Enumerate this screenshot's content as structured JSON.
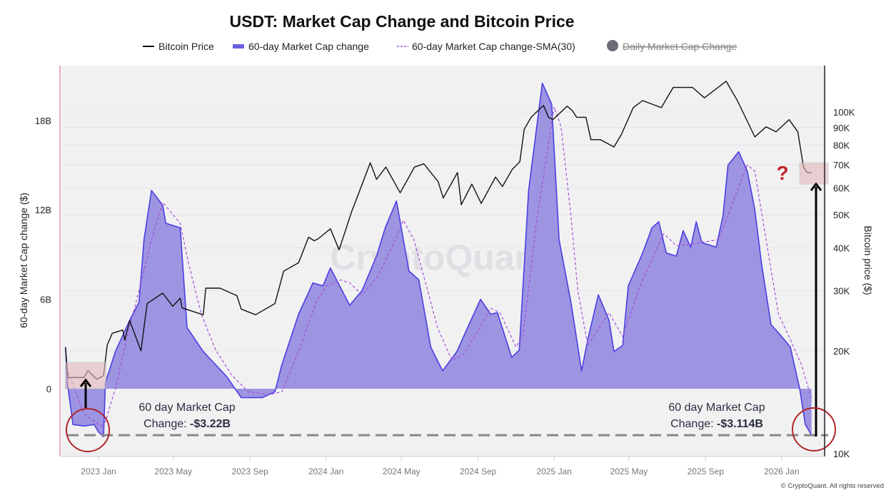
{
  "chart_data": {
    "type": "area",
    "title": "USDT: Market Cap Change and Bitcoin Price",
    "legend": {
      "placement": "top",
      "items": [
        {
          "label": "Bitcoin Price",
          "color": "#111111",
          "style": "line"
        },
        {
          "label": "60-day Market Cap change",
          "color": "#5b4fe0",
          "style": "area"
        },
        {
          "label": "60-day Market Cap change-SMA(30)",
          "color": "#a34fd6",
          "style": "dashed"
        },
        {
          "label": "Daily Market Cap Change",
          "color": "#6b6b78",
          "style": "dot",
          "hidden": true
        }
      ]
    },
    "ylabel_left": "60-day Market Cap change ($)",
    "ylabel_right": "Bitcoin price ($)",
    "y_left": {
      "ticks": [
        "18B",
        "12B",
        "6B",
        "0"
      ],
      "tick_values": [
        18,
        12,
        6,
        0
      ],
      "range": [
        -4.45,
        21.6
      ],
      "unit": "B"
    },
    "y_right": {
      "scale": "log",
      "ticks": [
        "100K",
        "90K",
        "80K",
        "70K",
        "60K",
        "50K",
        "40K",
        "30K",
        "20K",
        "10K"
      ],
      "tick_values": [
        100,
        90,
        80,
        70,
        60,
        50,
        40,
        30,
        20,
        10
      ],
      "unit": "K"
    },
    "x_axis": {
      "ticks": [
        "2023 Jan",
        "2023 May",
        "2023 Sep",
        "2024 Jan",
        "2024 May",
        "2024 Sep",
        "2025 Jan",
        "2025 May",
        "2025 Sep",
        "2026 Jan"
      ],
      "tick_dates": [
        "2023-01-01",
        "2023-05-01",
        "2023-09-01",
        "2024-01-01",
        "2024-05-01",
        "2024-09-01",
        "2025-01-01",
        "2025-05-01",
        "2025-09-01",
        "2026-01-01"
      ],
      "range": [
        "2022-11-07",
        "2026-03-10"
      ]
    },
    "grid": true,
    "series": [
      {
        "name": "60-day Market Cap change",
        "unit": "B",
        "points": [
          [
            "2022-11-09",
            2.8
          ],
          [
            "2022-11-13",
            0.1
          ],
          [
            "2022-11-21",
            -2.4
          ],
          [
            "2022-12-09",
            -2.5
          ],
          [
            "2022-12-25",
            -2.4
          ],
          [
            "2023-01-01",
            -2.9
          ],
          [
            "2023-01-09",
            -3.22
          ],
          [
            "2023-01-12",
            0.4
          ],
          [
            "2023-01-28",
            2.5
          ],
          [
            "2023-02-20",
            4.6
          ],
          [
            "2023-03-07",
            5.8
          ],
          [
            "2023-03-15",
            10
          ],
          [
            "2023-03-27",
            13.3
          ],
          [
            "2023-04-14",
            12.3
          ],
          [
            "2023-04-19",
            11.1
          ],
          [
            "2023-05-12",
            10.8
          ],
          [
            "2023-05-23",
            4.1
          ],
          [
            "2023-06-18",
            2.5
          ],
          [
            "2023-07-26",
            0.8
          ],
          [
            "2023-08-18",
            -0.6
          ],
          [
            "2023-09-21",
            -0.6
          ],
          [
            "2023-10-11",
            -0.2
          ],
          [
            "2023-10-22",
            1.6
          ],
          [
            "2023-11-18",
            5
          ],
          [
            "2023-12-11",
            7.1
          ],
          [
            "2023-12-27",
            6.9
          ],
          [
            "2024-01-08",
            8.1
          ],
          [
            "2024-02-08",
            5.6
          ],
          [
            "2024-02-28",
            6.6
          ],
          [
            "2024-03-22",
            8.9
          ],
          [
            "2024-04-05",
            10.8
          ],
          [
            "2024-04-23",
            12.6
          ],
          [
            "2024-05-13",
            7.9
          ],
          [
            "2024-05-29",
            7.3
          ],
          [
            "2024-06-17",
            2.8
          ],
          [
            "2024-07-06",
            1.2
          ],
          [
            "2024-07-29",
            2.5
          ],
          [
            "2024-08-13",
            3.9
          ],
          [
            "2024-09-05",
            6.0
          ],
          [
            "2024-09-21",
            5.0
          ],
          [
            "2024-10-02",
            5.1
          ],
          [
            "2024-10-25",
            2.1
          ],
          [
            "2024-11-06",
            2.6
          ],
          [
            "2024-11-21",
            13.3
          ],
          [
            "2024-12-13",
            20.5
          ],
          [
            "2024-12-28",
            19.1
          ],
          [
            "2025-01-09",
            10
          ],
          [
            "2025-01-28",
            5.8
          ],
          [
            "2025-02-14",
            1.2
          ],
          [
            "2025-02-24",
            3.3
          ],
          [
            "2025-03-13",
            6.3
          ],
          [
            "2025-03-30",
            4.6
          ],
          [
            "2025-04-07",
            2.5
          ],
          [
            "2025-04-21",
            2.9
          ],
          [
            "2025-04-30",
            6.9
          ],
          [
            "2025-05-23",
            9.1
          ],
          [
            "2025-06-07",
            10.8
          ],
          [
            "2025-06-18",
            11.2
          ],
          [
            "2025-06-30",
            9.1
          ],
          [
            "2025-07-16",
            8.9
          ],
          [
            "2025-07-27",
            10.6
          ],
          [
            "2025-08-08",
            9.5
          ],
          [
            "2025-08-17",
            11.2
          ],
          [
            "2025-08-26",
            9.8
          ],
          [
            "2025-09-18",
            9.5
          ],
          [
            "2025-09-29",
            11.6
          ],
          [
            "2025-10-07",
            15
          ],
          [
            "2025-10-24",
            15.9
          ],
          [
            "2025-11-07",
            14.6
          ],
          [
            "2025-11-19",
            12
          ],
          [
            "2025-11-30",
            8.3
          ],
          [
            "2025-12-15",
            4.3
          ],
          [
            "2025-12-30",
            3.6
          ],
          [
            "2026-01-15",
            2.8
          ],
          [
            "2026-01-30",
            0
          ],
          [
            "2026-02-08",
            -2.4
          ],
          [
            "2026-02-18",
            -3.114
          ]
        ]
      },
      {
        "name": "60-day Market Cap change-SMA(30)",
        "unit": "B",
        "points": [
          [
            "2022-11-13",
            1.1
          ],
          [
            "2022-12-09",
            -1.7
          ],
          [
            "2023-01-05",
            -2.5
          ],
          [
            "2023-01-12",
            -2.2
          ],
          [
            "2023-01-28",
            0
          ],
          [
            "2023-02-15",
            3.3
          ],
          [
            "2023-03-07",
            6.6
          ],
          [
            "2023-03-27",
            10
          ],
          [
            "2023-04-14",
            12.5
          ],
          [
            "2023-05-12",
            11.1
          ],
          [
            "2023-05-26",
            8.3
          ],
          [
            "2023-06-15",
            5
          ],
          [
            "2023-07-08",
            2.6
          ],
          [
            "2023-08-03",
            0.9
          ],
          [
            "2023-08-29",
            -0.2
          ],
          [
            "2023-10-02",
            -0.4
          ],
          [
            "2023-10-22",
            -0.2
          ],
          [
            "2023-11-18",
            2.5
          ],
          [
            "2023-12-16",
            5.8
          ],
          [
            "2024-01-02",
            6.9
          ],
          [
            "2024-01-24",
            7.3
          ],
          [
            "2024-02-08",
            7.1
          ],
          [
            "2024-02-28",
            6.3
          ],
          [
            "2024-03-25",
            7.6
          ],
          [
            "2024-04-17",
            9.6
          ],
          [
            "2024-05-04",
            11.3
          ],
          [
            "2024-05-21",
            10
          ],
          [
            "2024-06-10",
            6.9
          ],
          [
            "2024-06-28",
            4.1
          ],
          [
            "2024-07-21",
            1.9
          ],
          [
            "2024-08-09",
            2.3
          ],
          [
            "2024-09-01",
            3.9
          ],
          [
            "2024-09-21",
            5.4
          ],
          [
            "2024-10-06",
            5.1
          ],
          [
            "2024-11-01",
            2.8
          ],
          [
            "2024-11-12",
            3.6
          ],
          [
            "2024-12-05",
            11.6
          ],
          [
            "2025-01-01",
            18.9
          ],
          [
            "2025-01-12",
            17.6
          ],
          [
            "2025-01-28",
            11.6
          ],
          [
            "2025-02-08",
            6.6
          ],
          [
            "2025-02-24",
            2.9
          ],
          [
            "2025-03-11",
            3.9
          ],
          [
            "2025-03-30",
            5.1
          ],
          [
            "2025-04-21",
            3.5
          ],
          [
            "2025-05-19",
            6.9
          ],
          [
            "2025-06-26",
            10.4
          ],
          [
            "2025-07-16",
            9.6
          ],
          [
            "2025-08-08",
            9.7
          ],
          [
            "2025-09-22",
            10
          ],
          [
            "2025-10-22",
            13.3
          ],
          [
            "2025-11-07",
            15
          ],
          [
            "2025-11-19",
            14.6
          ],
          [
            "2025-12-07",
            10
          ],
          [
            "2025-12-27",
            5
          ],
          [
            "2026-01-15",
            3.3
          ],
          [
            "2026-02-02",
            1.6
          ],
          [
            "2026-02-18",
            -0.7
          ]
        ]
      },
      {
        "name": "Bitcoin Price",
        "unit": "K",
        "axis": "right",
        "points": [
          [
            "2022-11-09",
            20.5
          ],
          [
            "2022-11-13",
            16.7
          ],
          [
            "2022-12-09",
            16.7
          ],
          [
            "2022-12-15",
            17.5
          ],
          [
            "2022-12-29",
            16.5
          ],
          [
            "2023-01-09",
            16.9
          ],
          [
            "2023-01-15",
            20.8
          ],
          [
            "2023-01-23",
            22.5
          ],
          [
            "2023-02-09",
            23
          ],
          [
            "2023-02-12",
            21.5
          ],
          [
            "2023-02-20",
            24.5
          ],
          [
            "2023-03-10",
            20
          ],
          [
            "2023-03-20",
            27.5
          ],
          [
            "2023-04-14",
            29.5
          ],
          [
            "2023-04-30",
            27
          ],
          [
            "2023-05-12",
            28.5
          ],
          [
            "2023-05-15",
            26.7
          ],
          [
            "2023-06-18",
            25.5
          ],
          [
            "2023-06-22",
            30.5
          ],
          [
            "2023-07-15",
            30.5
          ],
          [
            "2023-08-11",
            29
          ],
          [
            "2023-08-18",
            26.5
          ],
          [
            "2023-09-10",
            25.5
          ],
          [
            "2023-10-11",
            27.5
          ],
          [
            "2023-10-25",
            34.2
          ],
          [
            "2023-11-18",
            36.2
          ],
          [
            "2023-12-04",
            43
          ],
          [
            "2023-12-13",
            42
          ],
          [
            "2023-12-19",
            42.5
          ],
          [
            "2024-01-08",
            45.5
          ],
          [
            "2024-01-22",
            39.5
          ],
          [
            "2024-02-11",
            51
          ],
          [
            "2024-02-28",
            61.5
          ],
          [
            "2024-03-12",
            71
          ],
          [
            "2024-03-22",
            63.5
          ],
          [
            "2024-04-06",
            69
          ],
          [
            "2024-04-29",
            58
          ],
          [
            "2024-05-22",
            69
          ],
          [
            "2024-06-06",
            70.5
          ],
          [
            "2024-06-29",
            62.5
          ],
          [
            "2024-07-07",
            56
          ],
          [
            "2024-07-30",
            66.5
          ],
          [
            "2024-08-05",
            53.5
          ],
          [
            "2024-08-22",
            61.5
          ],
          [
            "2024-09-06",
            54
          ],
          [
            "2024-09-29",
            64.5
          ],
          [
            "2024-10-10",
            60.5
          ],
          [
            "2024-10-26",
            68
          ],
          [
            "2024-11-07",
            71.5
          ],
          [
            "2024-11-14",
            89
          ],
          [
            "2024-11-25",
            96.5
          ],
          [
            "2024-12-15",
            104.5
          ],
          [
            "2024-12-23",
            96.5
          ],
          [
            "2024-12-30",
            95
          ],
          [
            "2025-01-22",
            104
          ],
          [
            "2025-01-30",
            101
          ],
          [
            "2025-02-06",
            96.5
          ],
          [
            "2025-02-21",
            96.5
          ],
          [
            "2025-03-01",
            83
          ],
          [
            "2025-03-16",
            83
          ],
          [
            "2025-04-07",
            79
          ],
          [
            "2025-04-19",
            86
          ],
          [
            "2025-05-08",
            103
          ],
          [
            "2025-05-23",
            108
          ],
          [
            "2025-06-22",
            103
          ],
          [
            "2025-07-11",
            118
          ],
          [
            "2025-08-11",
            118
          ],
          [
            "2025-08-30",
            110
          ],
          [
            "2025-10-04",
            123
          ],
          [
            "2025-10-22",
            108
          ],
          [
            "2025-11-19",
            84.5
          ],
          [
            "2025-12-07",
            90.5
          ],
          [
            "2025-12-23",
            87.5
          ],
          [
            "2026-01-13",
            95
          ],
          [
            "2026-01-27",
            87.5
          ],
          [
            "2026-02-05",
            69
          ],
          [
            "2026-02-11",
            66.5
          ],
          [
            "2026-02-18",
            66.5
          ]
        ]
      }
    ],
    "annotations": {
      "left_label_line1": "60 day Market Cap",
      "left_label_prefix": "Change: ",
      "left_label_value": "-$3.22B",
      "right_label_line1": "60 day Market Cap",
      "right_label_prefix": "Change: ",
      "right_label_value": "-$3.114B",
      "question_mark": "?",
      "reference_level": -3.114
    },
    "colors": {
      "area_fill": "#9d94e2",
      "area_stroke": "#4b3fe0",
      "sma": "#a34fd6",
      "price": "#111111",
      "highlight_box": "#e3b8bb",
      "circle": "#b0262c",
      "question": "#c0242b",
      "plot_bg": "#f1f1f2"
    }
  },
  "watermark": "CryptoQuant",
  "footer": "© CryptoQuant. All rights reserved"
}
